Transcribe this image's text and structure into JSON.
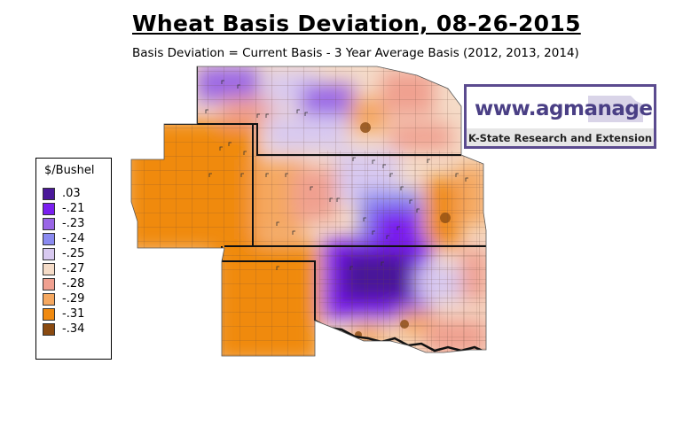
{
  "title": "Wheat Basis Deviation, 08-26-2015",
  "subtitle": "Basis Deviation = Current Basis - 3 Year Average Basis (2012, 2013, 2014)",
  "legend": {
    "title": "$/Bushel",
    "items": [
      {
        "label": ".03",
        "color": "#4a1899"
      },
      {
        "label": "-.21",
        "color": "#7a1ff0"
      },
      {
        "label": "-.23",
        "color": "#9a66e6"
      },
      {
        "label": "-.24",
        "color": "#8a8af0"
      },
      {
        "label": "-.25",
        "color": "#d8c9f0"
      },
      {
        "label": "-.27",
        "color": "#f5dcc8"
      },
      {
        "label": "-.28",
        "color": "#f0a090"
      },
      {
        "label": "-.29",
        "color": "#f5a860"
      },
      {
        "label": "-.31",
        "color": "#f08a10"
      },
      {
        "label": "-.34",
        "color": "#8a4a10"
      }
    ]
  },
  "logo": {
    "url_text": "www.agmanager.info",
    "org_text": "K-State Research and Extension",
    "color": "#4a3f85"
  }
}
